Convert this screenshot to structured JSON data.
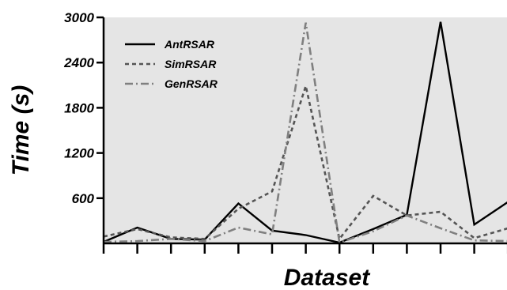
{
  "chart_data": {
    "type": "line",
    "xlabel": "Dataset",
    "ylabel": "Time (s)",
    "ylim": [
      0,
      3000
    ],
    "yticks": [
      600,
      1200,
      1800,
      2400,
      3000
    ],
    "x": [
      1,
      2,
      3,
      4,
      5,
      6,
      7,
      8,
      9,
      10,
      11,
      12,
      13
    ],
    "grid": false,
    "legend_position": "top-left",
    "colors": {
      "background": "#e5e5e5",
      "AntRSAR": "#000000",
      "SimRSAR": "#555555",
      "GenRSAR": "#808080"
    },
    "series": [
      {
        "name": "AntRSAR",
        "dash": "solid",
        "values": [
          20,
          210,
          60,
          50,
          530,
          170,
          110,
          10,
          190,
          380,
          2940,
          250,
          550
        ]
      },
      {
        "name": "SimRSAR",
        "dash": "dash",
        "values": [
          90,
          190,
          80,
          60,
          460,
          690,
          2090,
          60,
          630,
          370,
          420,
          70,
          200
        ]
      },
      {
        "name": "GenRSAR",
        "dash": "dashdot",
        "values": [
          20,
          30,
          60,
          30,
          210,
          120,
          2930,
          10,
          160,
          370,
          200,
          40,
          30
        ]
      }
    ]
  }
}
